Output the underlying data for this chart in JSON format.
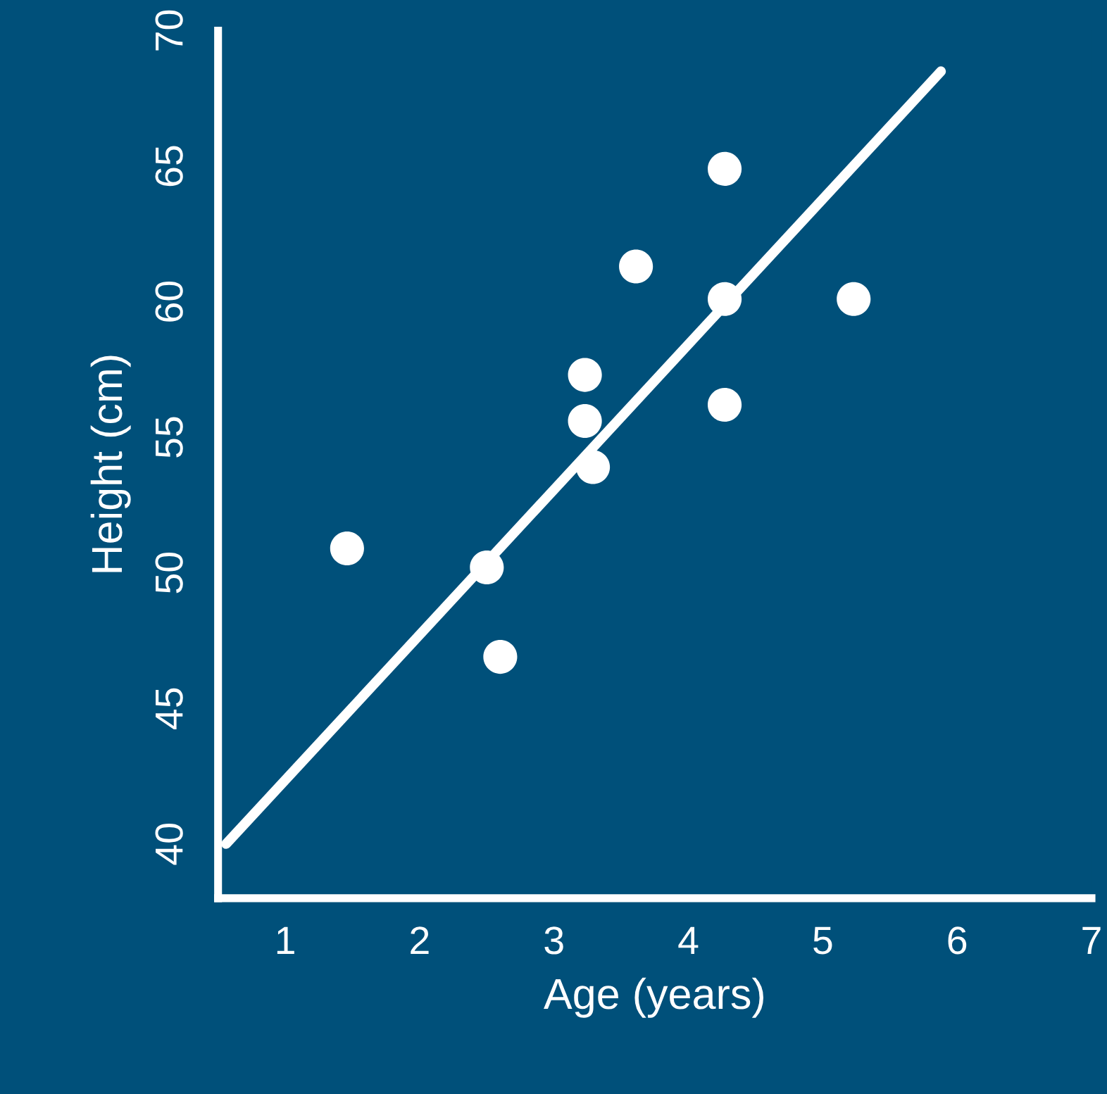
{
  "chart_data": {
    "type": "scatter",
    "xlabel": "Age (years)",
    "ylabel": "Height (cm)",
    "xlim": [
      0.5,
      7
    ],
    "ylim": [
      38,
      70
    ],
    "xticks": [
      1,
      2,
      3,
      4,
      5,
      6,
      7
    ],
    "yticks": [
      40,
      45,
      50,
      55,
      60,
      65,
      70
    ],
    "grid": false,
    "series": [
      {
        "marker": "circle",
        "color": "#ffffff",
        "x": [
          1.46,
          2.5,
          2.6,
          3.23,
          3.23,
          3.29,
          3.61,
          4.27,
          4.27,
          4.27,
          5.23
        ],
        "values": [
          50.9,
          50.2,
          46.9,
          57.3,
          55.6,
          53.9,
          61.3,
          64.9,
          60.1,
          56.2,
          60.1
        ]
      },
      {
        "type": "line",
        "color": "#ffffff",
        "x": [
          0.56,
          5.88
        ],
        "values": [
          40,
          68.5
        ]
      }
    ]
  }
}
